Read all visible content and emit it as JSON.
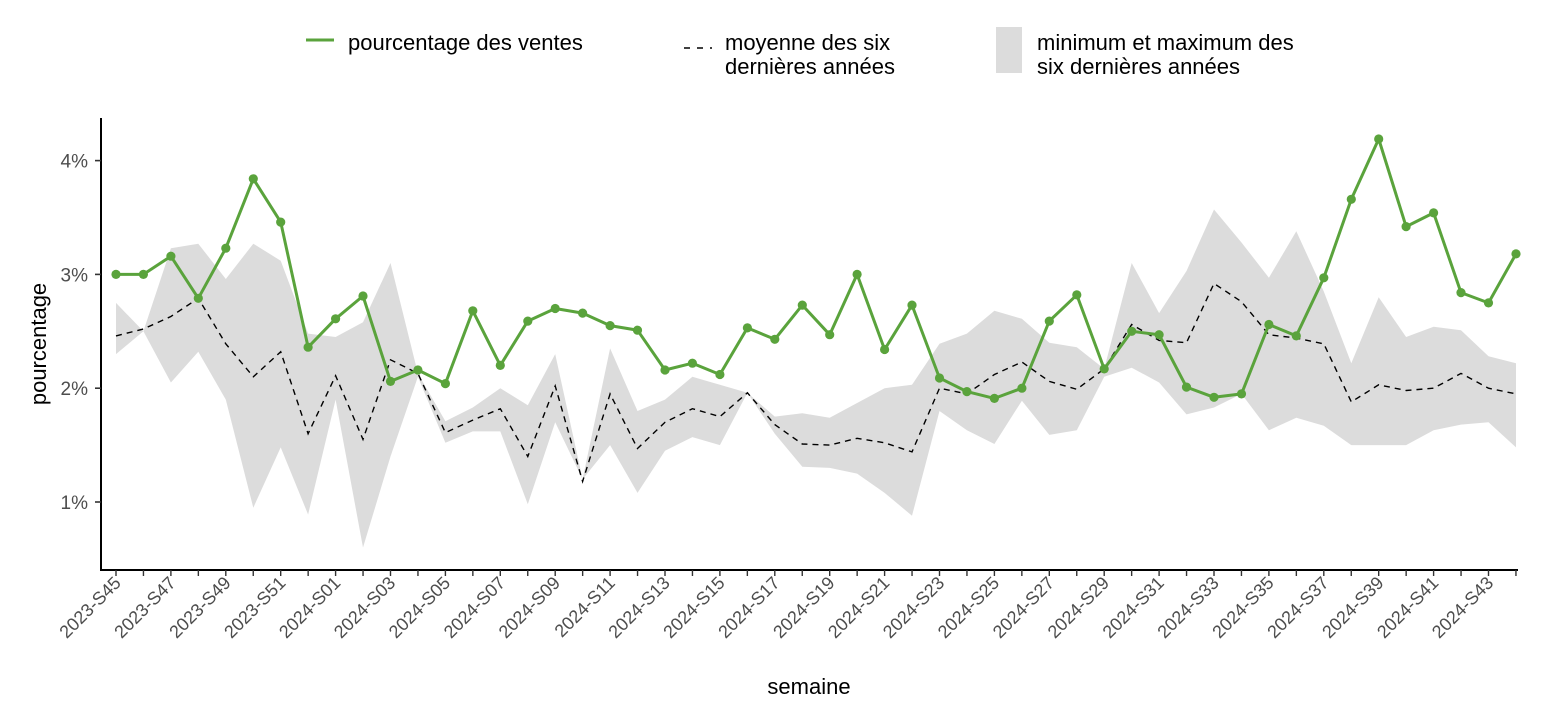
{
  "chart_data": {
    "type": "line",
    "xlabel": "semaine",
    "ylabel": "pourcentage",
    "ylim": [
      0.005,
      0.044
    ],
    "yticks": [
      0.01,
      0.02,
      0.03,
      0.04
    ],
    "ytick_labels": [
      "1%",
      "2%",
      "3%",
      "4%"
    ],
    "grid": false,
    "legend_position": "top",
    "x": [
      "2023-S45",
      "2023-S46",
      "2023-S47",
      "2023-S48",
      "2023-S49",
      "2023-S50",
      "2023-S51",
      "2023-S52",
      "2024-S01",
      "2024-S02",
      "2024-S03",
      "2024-S04",
      "2024-S05",
      "2024-S06",
      "2024-S07",
      "2024-S08",
      "2024-S09",
      "2024-S10",
      "2024-S11",
      "2024-S12",
      "2024-S13",
      "2024-S14",
      "2024-S15",
      "2024-S16",
      "2024-S17",
      "2024-S18",
      "2024-S19",
      "2024-S20",
      "2024-S21",
      "2024-S22",
      "2024-S23",
      "2024-S24",
      "2024-S25",
      "2024-S26",
      "2024-S27",
      "2024-S28",
      "2024-S29",
      "2024-S30",
      "2024-S31",
      "2024-S32",
      "2024-S33",
      "2024-S34",
      "2024-S35",
      "2024-S36",
      "2024-S37",
      "2024-S38",
      "2024-S39",
      "2024-S40",
      "2024-S41",
      "2024-S42",
      "2024-S43",
      "2024-S44"
    ],
    "xtick_labels": [
      "2023-S45",
      "2023-S47",
      "2023-S49",
      "2023-S51",
      "2024-S01",
      "2024-S03",
      "2024-S05",
      "2024-S07",
      "2024-S09",
      "2024-S11",
      "2024-S13",
      "2024-S15",
      "2024-S17",
      "2024-S19",
      "2024-S21",
      "2024-S23",
      "2024-S25",
      "2024-S27",
      "2024-S29",
      "2024-S31",
      "2024-S33",
      "2024-S35",
      "2024-S37",
      "2024-S39",
      "2024-S41",
      "2024-S43"
    ],
    "series": [
      {
        "name": "pourcentage des ventes",
        "kind": "line-points",
        "color": "#5aa33c",
        "values": [
          0.03,
          0.03,
          0.0316,
          0.0279,
          0.0323,
          0.0384,
          0.0346,
          0.0236,
          0.0261,
          0.0281,
          0.0206,
          0.0216,
          0.0204,
          0.0268,
          0.022,
          0.0259,
          0.027,
          0.0266,
          0.0255,
          0.0251,
          0.0216,
          0.0222,
          0.0212,
          0.0253,
          0.0243,
          0.0273,
          0.0247,
          0.03,
          0.0234,
          0.0273,
          0.0209,
          0.0197,
          0.0191,
          0.02,
          0.0259,
          0.0282,
          0.0217,
          0.025,
          0.0247,
          0.0201,
          0.0192,
          0.0195,
          0.0256,
          0.0246,
          0.0297,
          0.0366,
          0.0419,
          0.0342,
          0.0354,
          0.0284,
          0.0275,
          0.0318
        ]
      },
      {
        "name": "moyenne des six dernières années",
        "name_lines": [
          "moyenne des six",
          "dernières années"
        ],
        "kind": "dashed-line",
        "color": "#000000",
        "values": [
          0.0246,
          0.0252,
          0.0263,
          0.0279,
          0.0239,
          0.021,
          0.0232,
          0.016,
          0.0211,
          0.0155,
          0.0225,
          0.0213,
          0.0161,
          0.0172,
          0.0182,
          0.014,
          0.0202,
          0.0118,
          0.0195,
          0.0147,
          0.017,
          0.0182,
          0.0175,
          0.0196,
          0.0168,
          0.0151,
          0.015,
          0.0156,
          0.0152,
          0.0144,
          0.02,
          0.0195,
          0.0212,
          0.0223,
          0.0206,
          0.0199,
          0.0217,
          0.0256,
          0.0242,
          0.024,
          0.0292,
          0.0276,
          0.0247,
          0.0244,
          0.0239,
          0.0188,
          0.0203,
          0.0198,
          0.02,
          0.0213,
          0.02,
          0.0195
        ]
      },
      {
        "name": "minimum et maximum des six dernières années",
        "name_lines": [
          "minimum et maximum des",
          "six dernières années"
        ],
        "kind": "band",
        "color": "#dcdcdc",
        "min": [
          0.023,
          0.025,
          0.0205,
          0.0232,
          0.019,
          0.0095,
          0.0148,
          0.0089,
          0.019,
          0.006,
          0.014,
          0.021,
          0.0152,
          0.0162,
          0.0162,
          0.0098,
          0.017,
          0.012,
          0.015,
          0.0108,
          0.0145,
          0.0157,
          0.015,
          0.0196,
          0.016,
          0.0131,
          0.013,
          0.0125,
          0.0108,
          0.0088,
          0.018,
          0.0163,
          0.0151,
          0.0189,
          0.0159,
          0.0163,
          0.021,
          0.0218,
          0.0205,
          0.0177,
          0.0183,
          0.0195,
          0.0163,
          0.0174,
          0.0167,
          0.015,
          0.015,
          0.015,
          0.0163,
          0.0168,
          0.017,
          0.0148
        ],
        "max": [
          0.0275,
          0.025,
          0.0323,
          0.0327,
          0.0296,
          0.0327,
          0.0312,
          0.0248,
          0.0245,
          0.0258,
          0.031,
          0.0213,
          0.0171,
          0.0183,
          0.02,
          0.0185,
          0.023,
          0.012,
          0.0235,
          0.018,
          0.019,
          0.021,
          0.0203,
          0.0196,
          0.0175,
          0.0178,
          0.0174,
          0.0187,
          0.02,
          0.0203,
          0.0239,
          0.0248,
          0.0268,
          0.0261,
          0.024,
          0.0236,
          0.0217,
          0.031,
          0.0266,
          0.0303,
          0.0357,
          0.0328,
          0.0297,
          0.0338,
          0.0285,
          0.0222,
          0.028,
          0.0245,
          0.0254,
          0.0251,
          0.0228,
          0.0222
        ]
      }
    ]
  }
}
